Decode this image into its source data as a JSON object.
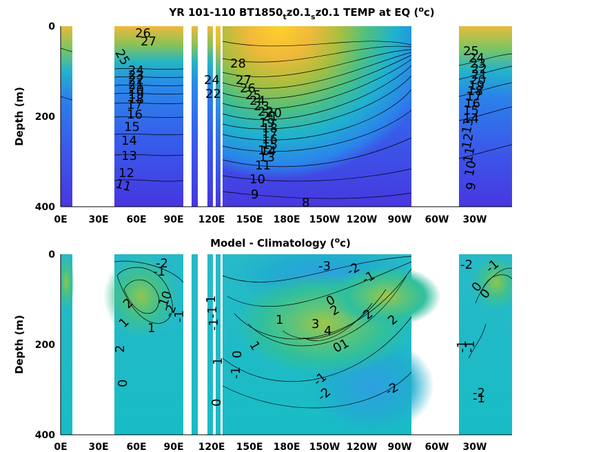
{
  "chart_data": [
    {
      "type": "heatmap",
      "title_parts": [
        "YR 101-110 BT1850",
        "t",
        "z0.1",
        "s",
        "z0.1 TEMP at EQ (",
        "o",
        "c)"
      ],
      "ylabel": "Depth (m)",
      "xticks": [
        "0E",
        "30E",
        "60E",
        "90E",
        "120E",
        "150E",
        "180E",
        "150W",
        "120W",
        "90W",
        "60W",
        "30W"
      ],
      "yticks": [
        "0",
        "200",
        "400"
      ],
      "ylim": [
        0,
        400
      ],
      "contour_labels": [
        "26",
        "27",
        "25",
        "24",
        "23",
        "22",
        "21",
        "20",
        "19",
        "18",
        "17",
        "16",
        "15",
        "14",
        "13",
        "12",
        "11",
        "24",
        "22",
        "28",
        "27",
        "26",
        "25",
        "24",
        "23",
        "22",
        "21",
        "20",
        "19",
        "18",
        "17",
        "16",
        "15",
        "14",
        "13",
        "12",
        "11",
        "10",
        "9",
        "8",
        "25",
        "24",
        "23",
        "22",
        "21",
        "20",
        "19",
        "18",
        "17",
        "16",
        "15",
        "14",
        "13",
        "12",
        "11",
        "10",
        "9"
      ],
      "colorscale": [
        "#3e26a8",
        "#4a3ee0",
        "#2d8ef2",
        "#1fb0d3",
        "#2dbea0",
        "#6bc766",
        "#b8bf3a",
        "#f2b634",
        "#fcd12b"
      ]
    },
    {
      "type": "heatmap",
      "title_parts": [
        "Model - Climatology (",
        "o",
        "c)"
      ],
      "ylabel": "Depth (m)",
      "xticks": [
        "0E",
        "30E",
        "60E",
        "90E",
        "120E",
        "150E",
        "180E",
        "150W",
        "120W",
        "90W",
        "60W",
        "30W"
      ],
      "yticks": [
        "0",
        "200",
        "400"
      ],
      "ylim": [
        0,
        400
      ],
      "contour_labels": [
        "-2",
        "-1",
        "1",
        "2",
        "0",
        "1",
        "-2",
        "1",
        "-1",
        "0",
        "2",
        "1",
        "-1",
        "-1",
        "1",
        "0",
        "-1",
        "0",
        "1",
        "-3",
        "-2",
        "-1",
        "0",
        "2",
        "1",
        "3",
        "4",
        "2",
        "0",
        "1",
        "2",
        "-1",
        "-2",
        "-2",
        "-2",
        "-1",
        "0",
        "0",
        "-1",
        "-1",
        "-2",
        "-1"
      ],
      "colorscale": [
        "#2fa8da",
        "#18bdc8",
        "#29c0ad",
        "#4ec17c",
        "#8cc54d",
        "#c6bf33"
      ]
    }
  ]
}
